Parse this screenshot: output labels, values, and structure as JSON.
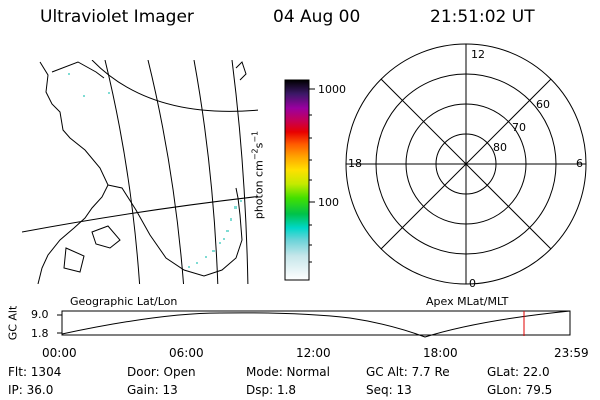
{
  "header": {
    "instrument": "Ultraviolet Imager",
    "date": "04 Aug 00",
    "time": "21:51:02 UT"
  },
  "colorbar": {
    "unit_prefix": "photon cm",
    "unit_exp1": "−2",
    "unit_mid": "s",
    "unit_exp2": "−1",
    "ticks": [
      "1000",
      "100"
    ]
  },
  "polar_plot": {
    "mlt_labels": [
      "12",
      "6",
      "0",
      "18"
    ],
    "lat_labels": [
      "60",
      "70",
      "80"
    ]
  },
  "panel_labels": {
    "left": "Geographic Lat/Lon",
    "right": "Apex MLat/MLT"
  },
  "altitude_plot": {
    "ylabel": "GC Alt",
    "yticks": [
      "9.0",
      "1.8"
    ],
    "xticks": [
      "00:00",
      "06:00",
      "12:00",
      "18:00",
      "23:59"
    ]
  },
  "info": {
    "flt": "Flt:  1304",
    "ip": "IP:  36.0",
    "door": "Door:  Open",
    "gain": "Gain:  13",
    "mode": "Mode:  Normal",
    "dsp": "Dsp:     1.8",
    "gcalt": "GC Alt:  7.7 Re",
    "seq": "Seq:  13",
    "glat": "GLat:   22.0",
    "glon": "GLon:   79.5"
  }
}
